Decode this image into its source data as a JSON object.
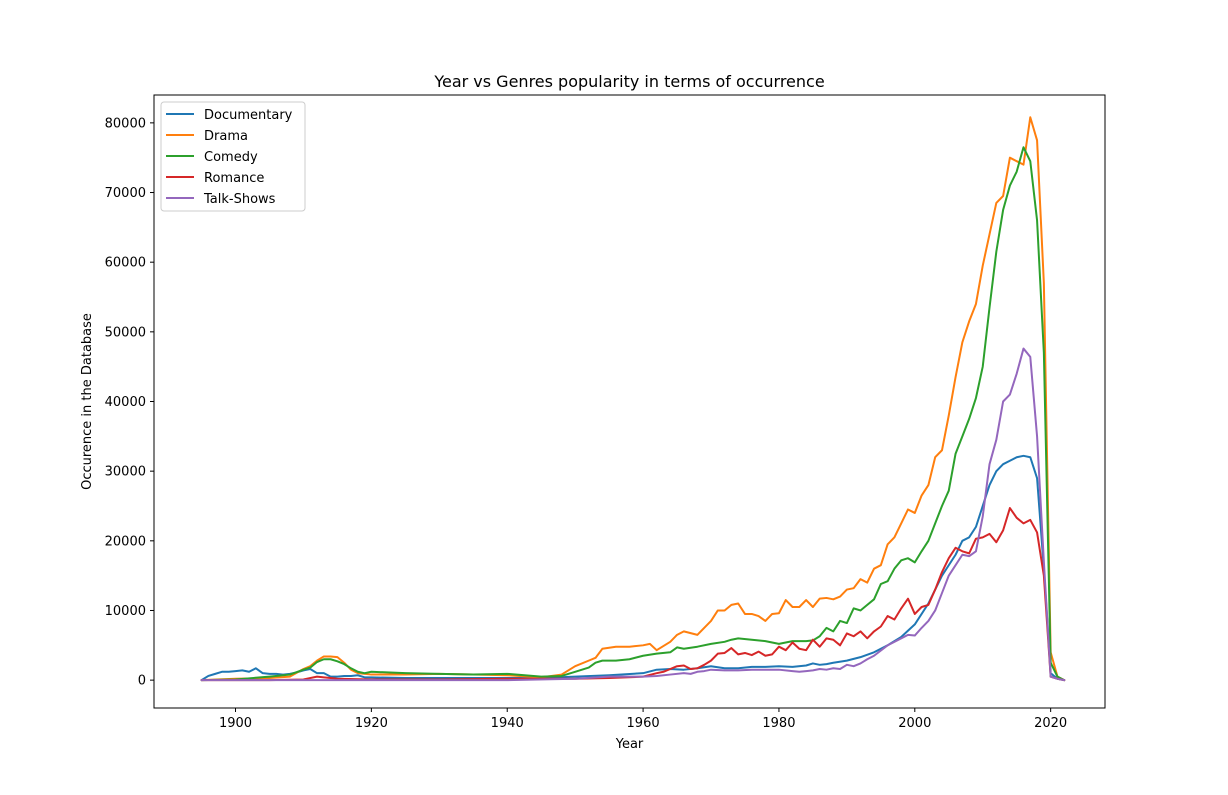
{
  "chart_data": {
    "type": "line",
    "title": "Year vs Genres popularity in terms of occurrence",
    "xlabel": "Year",
    "ylabel": "Occurence in the Database",
    "xlim": [
      1888,
      2028
    ],
    "ylim": [
      -4000,
      84000
    ],
    "xticks": [
      1900,
      1920,
      1940,
      1960,
      1980,
      2000,
      2020
    ],
    "yticks": [
      0,
      10000,
      20000,
      30000,
      40000,
      50000,
      60000,
      70000,
      80000
    ],
    "grid": false,
    "legend_position": "top-left",
    "series": [
      {
        "name": "Documentary",
        "color": "#1f77b4",
        "x": [
          1895,
          1896,
          1897,
          1898,
          1899,
          1900,
          1901,
          1902,
          1903,
          1904,
          1905,
          1906,
          1907,
          1908,
          1909,
          1910,
          1911,
          1912,
          1913,
          1914,
          1915,
          1916,
          1917,
          1918,
          1919,
          1920,
          1925,
          1930,
          1935,
          1940,
          1945,
          1950,
          1955,
          1960,
          1962,
          1964,
          1966,
          1968,
          1970,
          1972,
          1974,
          1976,
          1978,
          1980,
          1982,
          1984,
          1985,
          1986,
          1987,
          1988,
          1990,
          1992,
          1994,
          1996,
          1998,
          2000,
          2002,
          2004,
          2006,
          2007,
          2008,
          2009,
          2010,
          2011,
          2012,
          2013,
          2014,
          2015,
          2016,
          2017,
          2018,
          2019,
          2020,
          2021,
          2022
        ],
        "values": [
          0,
          600,
          900,
          1200,
          1200,
          1300,
          1400,
          1200,
          1700,
          1000,
          900,
          900,
          800,
          900,
          1100,
          1400,
          1600,
          1000,
          1000,
          500,
          500,
          600,
          600,
          700,
          400,
          400,
          300,
          300,
          300,
          300,
          300,
          500,
          700,
          1000,
          1500,
          1600,
          1500,
          1700,
          2000,
          1700,
          1700,
          1900,
          1900,
          2000,
          1900,
          2100,
          2400,
          2200,
          2300,
          2500,
          2800,
          3300,
          4000,
          5000,
          6200,
          8000,
          11000,
          15000,
          18000,
          20000,
          20500,
          22000,
          25000,
          28000,
          30000,
          31000,
          31500,
          32000,
          32200,
          32000,
          29000,
          16000,
          1000,
          200,
          0
        ]
      },
      {
        "name": "Drama",
        "color": "#ff7f0e",
        "x": [
          1895,
          1900,
          1905,
          1908,
          1910,
          1911,
          1912,
          1913,
          1914,
          1915,
          1916,
          1917,
          1918,
          1920,
          1925,
          1930,
          1935,
          1940,
          1945,
          1948,
          1950,
          1952,
          1953,
          1954,
          1956,
          1958,
          1960,
          1961,
          1962,
          1964,
          1965,
          1966,
          1968,
          1970,
          1971,
          1972,
          1973,
          1974,
          1975,
          1976,
          1977,
          1978,
          1979,
          1980,
          1981,
          1982,
          1983,
          1984,
          1985,
          1986,
          1987,
          1988,
          1989,
          1990,
          1991,
          1992,
          1993,
          1994,
          1995,
          1996,
          1997,
          1998,
          1999,
          2000,
          2001,
          2002,
          2003,
          2004,
          2005,
          2006,
          2007,
          2008,
          2009,
          2010,
          2011,
          2012,
          2013,
          2014,
          2015,
          2016,
          2017,
          2018,
          2019,
          2020,
          2021,
          2022
        ],
        "values": [
          0,
          200,
          300,
          500,
          1600,
          2000,
          2800,
          3400,
          3400,
          3300,
          2500,
          1500,
          1000,
          800,
          800,
          900,
          800,
          700,
          400,
          800,
          2000,
          2800,
          3200,
          4500,
          4800,
          4800,
          5000,
          5200,
          4300,
          5500,
          6500,
          7000,
          6500,
          8500,
          10000,
          10000,
          10800,
          11000,
          9500,
          9500,
          9200,
          8500,
          9500,
          9600,
          11500,
          10500,
          10500,
          11500,
          10500,
          11700,
          11800,
          11600,
          12000,
          13000,
          13200,
          14500,
          14000,
          16000,
          16500,
          19500,
          20500,
          22500,
          24500,
          24000,
          26500,
          28000,
          32000,
          33000,
          38000,
          43500,
          48500,
          51500,
          54000,
          59500,
          64000,
          68500,
          69500,
          75000,
          74500,
          74000,
          80800,
          77500,
          57000,
          4000,
          500,
          0
        ]
      },
      {
        "name": "Comedy",
        "color": "#2ca02c",
        "x": [
          1895,
          1900,
          1905,
          1908,
          1910,
          1911,
          1912,
          1913,
          1914,
          1915,
          1916,
          1917,
          1918,
          1919,
          1920,
          1925,
          1930,
          1935,
          1940,
          1945,
          1948,
          1950,
          1952,
          1953,
          1954,
          1956,
          1958,
          1960,
          1962,
          1964,
          1965,
          1966,
          1968,
          1970,
          1972,
          1973,
          1974,
          1976,
          1978,
          1980,
          1982,
          1984,
          1985,
          1986,
          1987,
          1988,
          1989,
          1990,
          1991,
          1992,
          1993,
          1994,
          1995,
          1996,
          1997,
          1998,
          1999,
          2000,
          2001,
          2002,
          2003,
          2004,
          2005,
          2006,
          2007,
          2008,
          2009,
          2010,
          2011,
          2012,
          2013,
          2014,
          2015,
          2016,
          2017,
          2018,
          2019,
          2020,
          2021,
          2022
        ],
        "values": [
          0,
          100,
          500,
          800,
          1500,
          1800,
          2600,
          3000,
          3000,
          2700,
          2300,
          1700,
          1200,
          1000,
          1200,
          1000,
          900,
          800,
          900,
          500,
          600,
          1200,
          1800,
          2500,
          2800,
          2800,
          3000,
          3500,
          3800,
          4000,
          4700,
          4500,
          4800,
          5200,
          5500,
          5800,
          6000,
          5800,
          5600,
          5200,
          5600,
          5600,
          5700,
          6300,
          7500,
          7000,
          8500,
          8200,
          10300,
          10000,
          10800,
          11600,
          13800,
          14200,
          16000,
          17200,
          17500,
          16900,
          18500,
          20000,
          22500,
          25000,
          27200,
          32500,
          35000,
          37500,
          40500,
          45000,
          53500,
          61500,
          67500,
          71000,
          73000,
          76500,
          74500,
          66000,
          47000,
          2500,
          500,
          0
        ]
      },
      {
        "name": "Romance",
        "color": "#d62728",
        "x": [
          1895,
          1900,
          1905,
          1910,
          1912,
          1913,
          1914,
          1915,
          1920,
          1930,
          1940,
          1950,
          1955,
          1960,
          1962,
          1963,
          1964,
          1965,
          1966,
          1967,
          1968,
          1969,
          1970,
          1971,
          1972,
          1973,
          1974,
          1975,
          1976,
          1977,
          1978,
          1979,
          1980,
          1981,
          1982,
          1983,
          1984,
          1985,
          1986,
          1987,
          1988,
          1989,
          1990,
          1991,
          1992,
          1993,
          1994,
          1995,
          1996,
          1997,
          1998,
          1999,
          2000,
          2001,
          2002,
          2003,
          2004,
          2005,
          2006,
          2007,
          2008,
          2009,
          2010,
          2011,
          2012,
          2013,
          2014,
          2015,
          2016,
          2017,
          2018,
          2019,
          2020,
          2021,
          2022
        ],
        "values": [
          0,
          0,
          0,
          100,
          500,
          400,
          300,
          200,
          100,
          100,
          200,
          200,
          300,
          500,
          1000,
          1200,
          1600,
          2000,
          2100,
          1600,
          1700,
          2200,
          2800,
          3800,
          3900,
          4600,
          3700,
          3900,
          3600,
          4100,
          3500,
          3700,
          4800,
          4300,
          5400,
          4500,
          4300,
          5800,
          4800,
          6000,
          5800,
          5000,
          6700,
          6300,
          7000,
          6000,
          7000,
          7700,
          9200,
          8700,
          10300,
          11700,
          9500,
          10500,
          10800,
          13000,
          15500,
          17500,
          19000,
          18500,
          18200,
          20300,
          20500,
          21000,
          19800,
          21500,
          24700,
          23300,
          22500,
          23000,
          21200,
          15000,
          500,
          200,
          0
        ]
      },
      {
        "name": "Talk-Shows",
        "color": "#9467bd",
        "x": [
          1895,
          1900,
          1920,
          1940,
          1950,
          1955,
          1960,
          1962,
          1964,
          1966,
          1967,
          1968,
          1969,
          1970,
          1972,
          1974,
          1976,
          1978,
          1980,
          1982,
          1983,
          1984,
          1985,
          1986,
          1987,
          1988,
          1989,
          1990,
          1991,
          1992,
          1993,
          1994,
          1996,
          1998,
          1999,
          2000,
          2001,
          2002,
          2003,
          2004,
          2005,
          2006,
          2007,
          2008,
          2009,
          2010,
          2011,
          2012,
          2013,
          2014,
          2015,
          2016,
          2017,
          2018,
          2019,
          2020,
          2021,
          2022
        ],
        "values": [
          0,
          0,
          0,
          0,
          200,
          500,
          500,
          600,
          800,
          1000,
          900,
          1200,
          1300,
          1500,
          1400,
          1400,
          1500,
          1500,
          1500,
          1300,
          1200,
          1300,
          1400,
          1600,
          1500,
          1700,
          1600,
          2200,
          2000,
          2400,
          3000,
          3500,
          5000,
          6000,
          6500,
          6400,
          7500,
          8500,
          10000,
          12500,
          15000,
          16500,
          18000,
          17800,
          18500,
          23500,
          31000,
          34500,
          40000,
          41000,
          44000,
          47600,
          46400,
          35000,
          17000,
          500,
          200,
          0
        ]
      }
    ]
  }
}
